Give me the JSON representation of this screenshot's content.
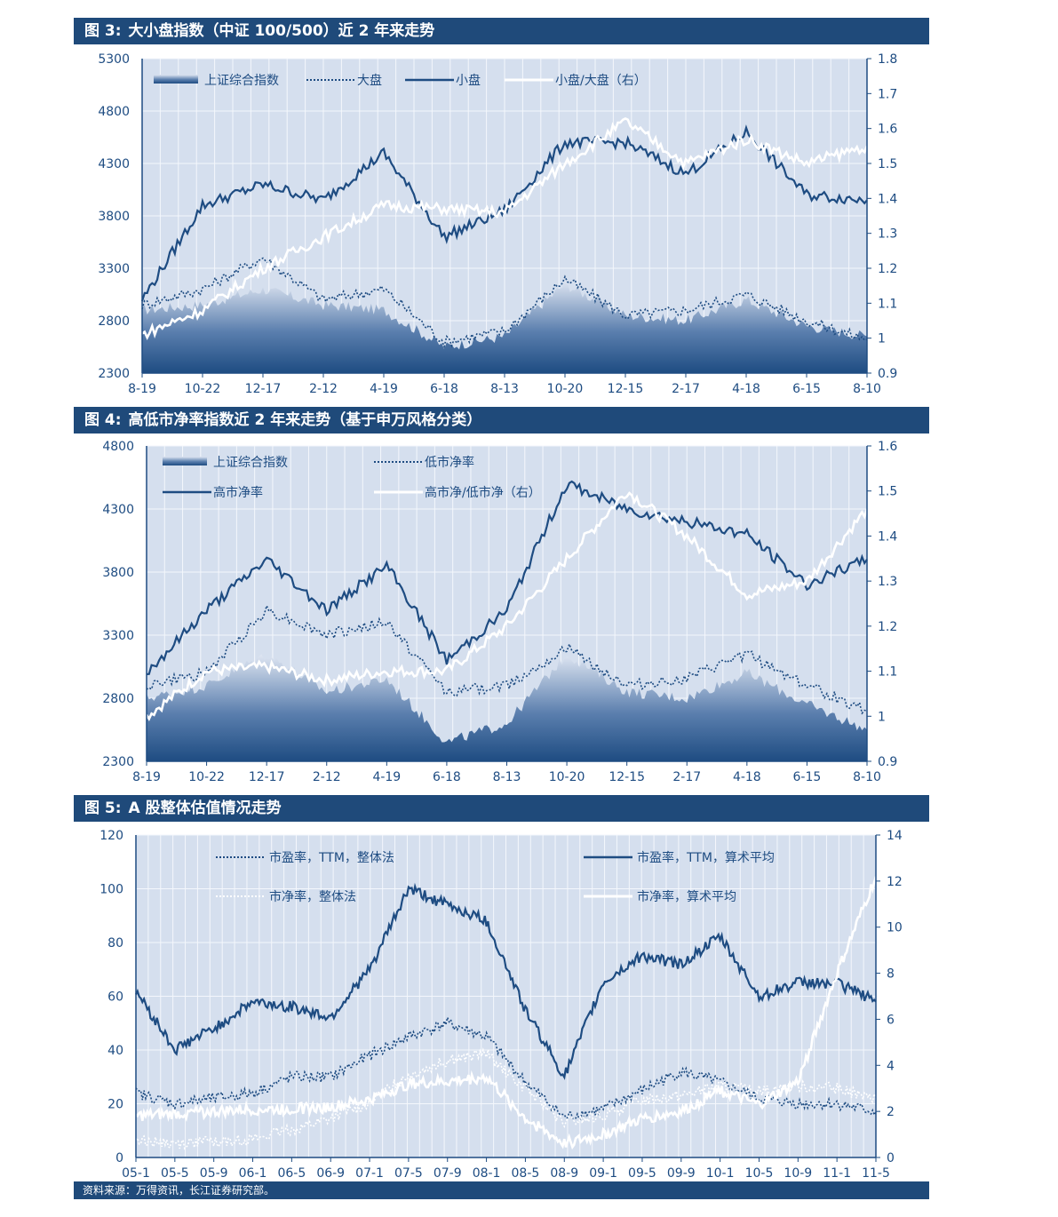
{
  "charts": [
    {
      "fig_label": "图 3:",
      "title": "大小盘指数（中证 100/500）近 2 年来走势",
      "left_ticks": [
        "5300",
        "4800",
        "4300",
        "3800",
        "3300",
        "2800",
        "2300"
      ],
      "right_ticks": [
        "1.8",
        "1.7",
        "1.6",
        "1.5",
        "1.4",
        "1.3",
        "1.2",
        "1.1",
        "1",
        "0.9"
      ],
      "x_ticks": [
        "8-19",
        "10-22",
        "12-17",
        "2-12",
        "4-19",
        "6-18",
        "8-13",
        "10-20",
        "12-15",
        "2-17",
        "4-18",
        "6-15",
        "8-10"
      ],
      "legend": [
        "上证综合指数",
        "大盘",
        "小盘",
        "小盘/大盘（右）"
      ]
    },
    {
      "fig_label": "图 4:",
      "title": "高低市净率指数近 2 年来走势（基于申万风格分类）",
      "left_ticks": [
        "4800",
        "4300",
        "3800",
        "3300",
        "2800",
        "2300"
      ],
      "right_ticks": [
        "1.6",
        "1.5",
        "1.4",
        "1.3",
        "1.2",
        "1.1",
        "1",
        "0.9"
      ],
      "x_ticks": [
        "8-19",
        "10-22",
        "12-17",
        "2-12",
        "4-19",
        "6-18",
        "8-13",
        "10-20",
        "12-15",
        "2-17",
        "4-18",
        "6-15",
        "8-10"
      ],
      "legend": [
        "上证综合指数",
        "低市净率",
        "高市净率",
        "高市净/低市净（右）"
      ]
    },
    {
      "fig_label": "图 5:",
      "title": "A 股整体估值情况走势",
      "left_ticks": [
        "120",
        "100",
        "80",
        "60",
        "40",
        "20",
        "0"
      ],
      "right_ticks": [
        "14",
        "12",
        "10",
        "8",
        "6",
        "4",
        "2",
        "0"
      ],
      "x_ticks": [
        "05-1",
        "05-5",
        "05-9",
        "06-1",
        "06-5",
        "06-9",
        "07-1",
        "07-5",
        "07-9",
        "08-1",
        "08-5",
        "08-9",
        "09-1",
        "09-5",
        "09-9",
        "10-1",
        "10-5",
        "10-9",
        "11-1",
        "11-5"
      ],
      "legend": [
        "市盈率，TTM，整体法",
        "市盈率，TTM，算术平均",
        "市净率，整体法",
        "市净率，算术平均"
      ]
    }
  ],
  "footer": "资料来源：万得资讯，长江证券研究部。",
  "chart_data": [
    {
      "type": "line",
      "title": "大小盘指数（中证 100/500）近 2 年来走势",
      "categories": [
        "8-19",
        "10-22",
        "12-17",
        "2-12",
        "4-19",
        "6-18",
        "8-13",
        "10-20",
        "12-15",
        "2-17",
        "4-18",
        "6-15",
        "8-10"
      ],
      "ylim": [
        2300,
        5300
      ],
      "y2lim": [
        0.9,
        1.8
      ],
      "series": [
        {
          "name": "上证综合指数",
          "type": "area",
          "values": [
            2900,
            2950,
            3100,
            2950,
            2900,
            2550,
            2650,
            3150,
            2850,
            2800,
            3000,
            2750,
            2650
          ]
        },
        {
          "name": "大盘",
          "values": [
            2950,
            3100,
            3400,
            3000,
            3100,
            2600,
            2700,
            3200,
            2850,
            2900,
            3050,
            2800,
            2620
          ]
        },
        {
          "name": "小盘",
          "values": [
            3000,
            3900,
            4100,
            3950,
            4400,
            3600,
            3850,
            4500,
            4500,
            4200,
            4600,
            4000,
            3950
          ]
        },
        {
          "name": "小盘/大盘（右）",
          "axis": "right",
          "values": [
            1.01,
            1.08,
            1.2,
            1.29,
            1.38,
            1.37,
            1.36,
            1.5,
            1.62,
            1.5,
            1.57,
            1.5,
            1.55
          ]
        }
      ]
    },
    {
      "type": "line",
      "title": "高低市净率指数近 2 年来走势（基于申万风格分类）",
      "categories": [
        "8-19",
        "10-22",
        "12-17",
        "2-12",
        "4-19",
        "6-18",
        "8-13",
        "10-20",
        "12-15",
        "2-17",
        "4-18",
        "6-15",
        "8-10"
      ],
      "ylim": [
        2300,
        4800
      ],
      "y2lim": [
        0.9,
        1.6
      ],
      "series": [
        {
          "name": "上证综合指数",
          "type": "area",
          "values": [
            2800,
            2900,
            3150,
            2850,
            2950,
            2450,
            2600,
            3150,
            2850,
            2800,
            3000,
            2750,
            2550
          ]
        },
        {
          "name": "低市净率",
          "values": [
            2900,
            3000,
            3500,
            3300,
            3400,
            2850,
            2900,
            3200,
            2900,
            2950,
            3150,
            2900,
            2700
          ]
        },
        {
          "name": "高市净率",
          "values": [
            3000,
            3500,
            3900,
            3500,
            3850,
            3100,
            3500,
            4500,
            4300,
            4200,
            4100,
            3700,
            3900
          ]
        },
        {
          "name": "高市净/低市净（右）",
          "axis": "right",
          "values": [
            1.0,
            1.1,
            1.11,
            1.08,
            1.1,
            1.1,
            1.2,
            1.35,
            1.5,
            1.4,
            1.27,
            1.3,
            1.46
          ]
        }
      ]
    },
    {
      "type": "line",
      "title": "A 股整体估值情况走势",
      "categories": [
        "05-1",
        "05-5",
        "05-9",
        "06-1",
        "06-5",
        "06-9",
        "07-1",
        "07-5",
        "07-9",
        "08-1",
        "08-5",
        "08-9",
        "09-1",
        "09-5",
        "09-9",
        "10-1",
        "10-5",
        "10-9",
        "11-1",
        "11-5"
      ],
      "ylim": [
        0,
        120
      ],
      "y2lim": [
        0,
        14
      ],
      "series": [
        {
          "name": "市盈率，TTM，整体法",
          "values": [
            24,
            20,
            22,
            24,
            30,
            30,
            38,
            45,
            50,
            45,
            28,
            15,
            18,
            25,
            32,
            28,
            22,
            20,
            20,
            17
          ]
        },
        {
          "name": "市盈率，TTM，算术平均",
          "values": [
            62,
            40,
            48,
            58,
            56,
            52,
            70,
            100,
            94,
            88,
            55,
            30,
            65,
            75,
            72,
            82,
            60,
            65,
            65,
            58
          ]
        },
        {
          "name": "市净率，整体法",
          "axis": "right",
          "values": [
            0.8,
            0.6,
            0.7,
            0.8,
            1.2,
            1.7,
            2.4,
            3.6,
            4.2,
            4.5,
            3,
            1.5,
            1.8,
            2.5,
            2.7,
            3.1,
            2.9,
            3.1,
            3,
            2.5
          ]
        },
        {
          "name": "市净率，算术平均",
          "axis": "right",
          "values": [
            1.8,
            1.9,
            2,
            2.1,
            2.1,
            2.2,
            2.5,
            3.2,
            3.3,
            3.5,
            1.7,
            0.6,
            1.0,
            1.7,
            2,
            2.9,
            2.3,
            3.3,
            8,
            12.2
          ]
        }
      ]
    }
  ]
}
